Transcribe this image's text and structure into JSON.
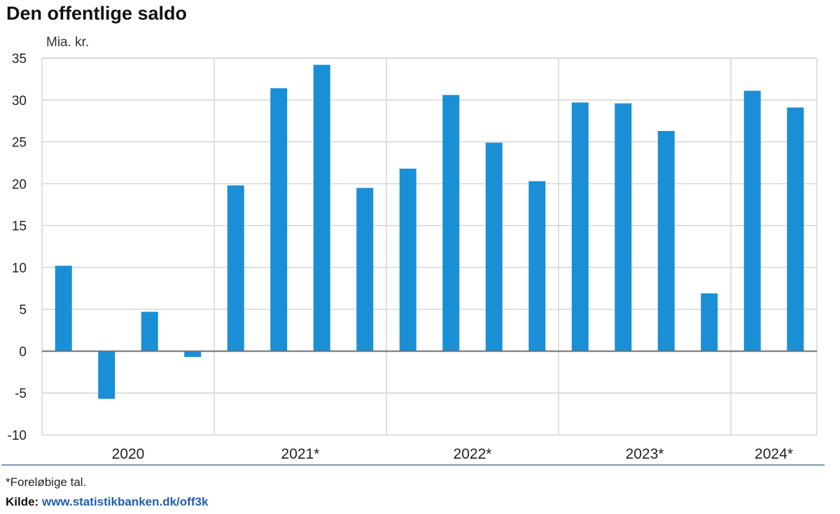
{
  "title": "Den offentlige saldo",
  "footnote": "*Foreløbige tal.",
  "source": {
    "label": "Kilde:",
    "link_text": "www.statistikbanken.dk/off3k"
  },
  "colors": {
    "bar": "#1a8fd6",
    "grid": "#d6d6d6",
    "zero_line": "#6e6e6e",
    "separator": "#7f97ad",
    "link": "#1f5fa8"
  },
  "chart_data": {
    "type": "bar",
    "ylabel": "Mia. kr.",
    "ylim": [
      -10,
      35
    ],
    "yticks": [
      35,
      30,
      25,
      20,
      15,
      10,
      5,
      0,
      -5,
      -10
    ],
    "grid": true,
    "groups": [
      {
        "label": "2020",
        "values": [
          10.2,
          -5.7,
          4.7,
          -0.7
        ]
      },
      {
        "label": "2021*",
        "values": [
          19.8,
          31.4,
          34.2,
          19.5
        ]
      },
      {
        "label": "2022*",
        "values": [
          21.8,
          30.6,
          24.9,
          20.3
        ]
      },
      {
        "label": "2023*",
        "values": [
          29.7,
          29.6,
          26.3,
          6.9
        ]
      },
      {
        "label": "2024*",
        "values": [
          31.1,
          29.1
        ]
      }
    ]
  }
}
